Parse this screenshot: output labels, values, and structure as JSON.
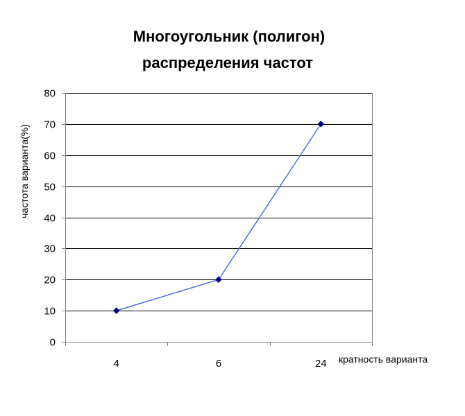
{
  "chart_data": {
    "type": "line",
    "title_lines": [
      "Многоугольник (полигон)",
      "распределения частот"
    ],
    "xlabel": "кратность варианта",
    "ylabel": "частота варианта(%)",
    "categories": [
      "4",
      "6",
      "24"
    ],
    "series": [
      {
        "values": [
          10,
          20,
          70
        ]
      }
    ],
    "ylim": [
      0,
      80
    ],
    "yticks": [
      0,
      10,
      20,
      30,
      40,
      50,
      60,
      70,
      80
    ],
    "grid": true,
    "legend": false,
    "colors": {
      "line": "#4a6fe0",
      "marker": "#00008b",
      "grid": "#000000",
      "axis": "#808080"
    }
  }
}
